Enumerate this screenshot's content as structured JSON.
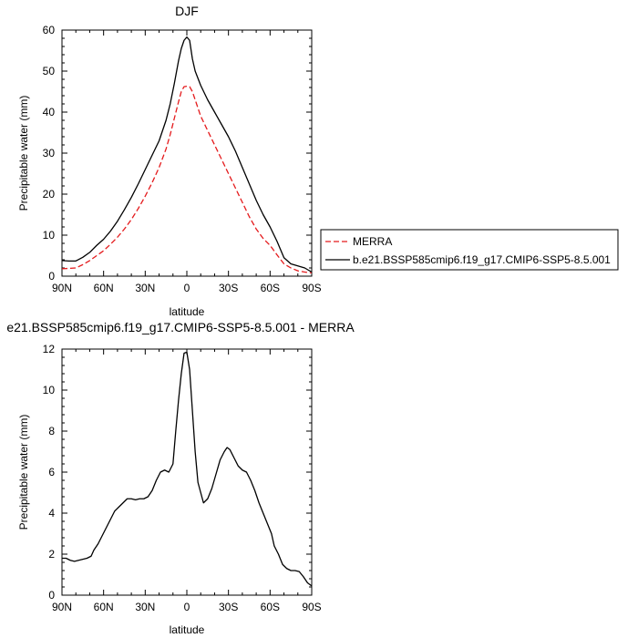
{
  "chart_data": [
    {
      "type": "line",
      "title": "DJF",
      "xlabel": "latitude",
      "ylabel": "Precipitable water (mm)",
      "xlim": [
        90,
        -90
      ],
      "ylim": [
        0,
        60
      ],
      "x_ticks": [
        90,
        60,
        30,
        0,
        -30,
        -60,
        -90
      ],
      "x_tick_labels": [
        "90N",
        "60N",
        "30N",
        "0",
        "30S",
        "60S",
        "90S"
      ],
      "y_ticks": [
        0,
        10,
        20,
        30,
        40,
        50,
        60
      ],
      "y_tick_labels": [
        "0",
        "10",
        "20",
        "30",
        "40",
        "50",
        "60"
      ],
      "legend_position": "right",
      "series": [
        {
          "name": "MERRA",
          "color": "#e41a1c",
          "style": "dashed",
          "points": [
            [
              90,
              1.8
            ],
            [
              85,
              1.9
            ],
            [
              80,
              2.0
            ],
            [
              75,
              2.8
            ],
            [
              70,
              3.8
            ],
            [
              65,
              5.0
            ],
            [
              60,
              6.2
            ],
            [
              55,
              7.8
            ],
            [
              50,
              9.5
            ],
            [
              45,
              11.5
            ],
            [
              40,
              13.8
            ],
            [
              35,
              16.5
            ],
            [
              30,
              19.5
            ],
            [
              25,
              22.8
            ],
            [
              20,
              26.5
            ],
            [
              15,
              31.0
            ],
            [
              12,
              34.5
            ],
            [
              9,
              38.5
            ],
            [
              6,
              42.5
            ],
            [
              4,
              45.0
            ],
            [
              2,
              46.2
            ],
            [
              0,
              46.3
            ],
            [
              -2,
              46.2
            ],
            [
              -4,
              45.0
            ],
            [
              -7,
              42.0
            ],
            [
              -10,
              39.0
            ],
            [
              -15,
              35.5
            ],
            [
              -20,
              32.0
            ],
            [
              -25,
              28.5
            ],
            [
              -30,
              25.0
            ],
            [
              -35,
              21.5
            ],
            [
              -40,
              18.0
            ],
            [
              -45,
              14.5
            ],
            [
              -50,
              11.5
            ],
            [
              -55,
              9.2
            ],
            [
              -60,
              7.5
            ],
            [
              -65,
              5.2
            ],
            [
              -70,
              3.0
            ],
            [
              -75,
              2.0
            ],
            [
              -80,
              1.3
            ],
            [
              -85,
              1.0
            ],
            [
              -90,
              0.8
            ]
          ]
        },
        {
          "name": "b.e21.BSSP585cmip6.f19_g17.CMIP6-SSP5-8.5.001",
          "color": "#000000",
          "style": "solid",
          "points": [
            [
              90,
              3.8
            ],
            [
              85,
              3.7
            ],
            [
              80,
              3.7
            ],
            [
              75,
              4.6
            ],
            [
              70,
              5.8
            ],
            [
              65,
              7.5
            ],
            [
              60,
              9.0
            ],
            [
              55,
              11.0
            ],
            [
              50,
              13.4
            ],
            [
              45,
              16.2
            ],
            [
              40,
              19.2
            ],
            [
              35,
              22.5
            ],
            [
              30,
              26.0
            ],
            [
              25,
              29.5
            ],
            [
              20,
              33.0
            ],
            [
              15,
              38.0
            ],
            [
              12,
              42.0
            ],
            [
              9,
              47.0
            ],
            [
              6,
              52.5
            ],
            [
              4,
              55.5
            ],
            [
              2,
              57.5
            ],
            [
              0,
              58.3
            ],
            [
              -2,
              57.5
            ],
            [
              -4,
              53.0
            ],
            [
              -6,
              50.0
            ],
            [
              -10,
              46.5
            ],
            [
              -15,
              43.0
            ],
            [
              -20,
              40.0
            ],
            [
              -25,
              37.0
            ],
            [
              -30,
              34.0
            ],
            [
              -35,
              30.5
            ],
            [
              -40,
              26.5
            ],
            [
              -45,
              22.5
            ],
            [
              -50,
              18.5
            ],
            [
              -55,
              15.0
            ],
            [
              -60,
              12.0
            ],
            [
              -65,
              8.5
            ],
            [
              -70,
              4.5
            ],
            [
              -75,
              3.0
            ],
            [
              -80,
              2.5
            ],
            [
              -85,
              2.0
            ],
            [
              -90,
              1.0
            ]
          ]
        }
      ]
    },
    {
      "type": "line",
      "title": "e21.BSSP585cmip6.f19_g17.CMIP6-SSP5-8.5.001 - MERRA",
      "xlabel": "latitude",
      "ylabel": "Precipitable water (mm)",
      "xlim": [
        90,
        -90
      ],
      "ylim": [
        0,
        12
      ],
      "x_ticks": [
        90,
        60,
        30,
        0,
        -30,
        -60,
        -90
      ],
      "x_tick_labels": [
        "90N",
        "60N",
        "30N",
        "0",
        "30S",
        "60S",
        "90S"
      ],
      "y_ticks": [
        0,
        2,
        4,
        6,
        8,
        10,
        12
      ],
      "y_tick_labels": [
        "0",
        "2",
        "4",
        "6",
        "8",
        "10",
        "12"
      ],
      "series": [
        {
          "color": "#000000",
          "style": "solid",
          "points": [
            [
              90,
              1.8
            ],
            [
              87,
              1.8
            ],
            [
              84,
              1.7
            ],
            [
              81,
              1.65
            ],
            [
              78,
              1.7
            ],
            [
              75,
              1.75
            ],
            [
              72,
              1.8
            ],
            [
              69,
              1.9
            ],
            [
              67,
              2.2
            ],
            [
              64,
              2.5
            ],
            [
              61,
              2.9
            ],
            [
              58,
              3.3
            ],
            [
              55,
              3.7
            ],
            [
              52,
              4.1
            ],
            [
              49,
              4.3
            ],
            [
              46,
              4.5
            ],
            [
              43,
              4.7
            ],
            [
              40,
              4.7
            ],
            [
              37,
              4.65
            ],
            [
              34,
              4.7
            ],
            [
              31,
              4.7
            ],
            [
              28,
              4.8
            ],
            [
              25,
              5.1
            ],
            [
              22,
              5.6
            ],
            [
              19,
              6.0
            ],
            [
              16,
              6.1
            ],
            [
              13,
              6.0
            ],
            [
              10,
              6.4
            ],
            [
              8,
              8.0
            ],
            [
              6,
              9.5
            ],
            [
              4,
              10.8
            ],
            [
              2,
              11.8
            ],
            [
              0,
              11.85
            ],
            [
              -2,
              11.0
            ],
            [
              -4,
              9.0
            ],
            [
              -6,
              7.0
            ],
            [
              -8,
              5.5
            ],
            [
              -10,
              5.0
            ],
            [
              -12,
              4.5
            ],
            [
              -15,
              4.7
            ],
            [
              -18,
              5.2
            ],
            [
              -21,
              5.9
            ],
            [
              -24,
              6.6
            ],
            [
              -27,
              7.0
            ],
            [
              -29,
              7.2
            ],
            [
              -31,
              7.1
            ],
            [
              -34,
              6.7
            ],
            [
              -37,
              6.3
            ],
            [
              -40,
              6.1
            ],
            [
              -43,
              6.0
            ],
            [
              -46,
              5.6
            ],
            [
              -49,
              5.1
            ],
            [
              -52,
              4.5
            ],
            [
              -55,
              4.0
            ],
            [
              -58,
              3.5
            ],
            [
              -61,
              3.0
            ],
            [
              -63,
              2.4
            ],
            [
              -66,
              2.0
            ],
            [
              -69,
              1.5
            ],
            [
              -72,
              1.3
            ],
            [
              -75,
              1.2
            ],
            [
              -78,
              1.2
            ],
            [
              -81,
              1.15
            ],
            [
              -84,
              0.9
            ],
            [
              -87,
              0.6
            ],
            [
              -90,
              0.45
            ]
          ]
        }
      ]
    }
  ]
}
